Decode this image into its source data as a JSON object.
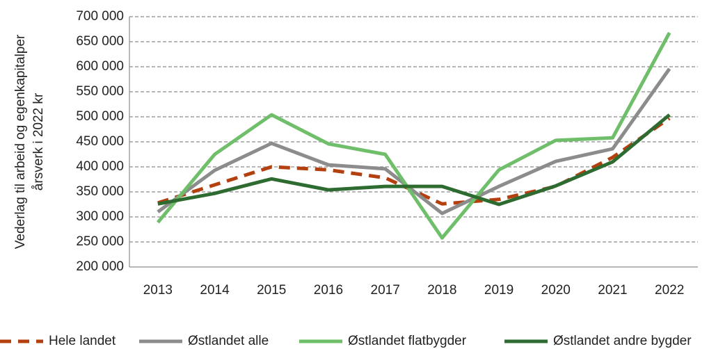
{
  "chart_data": {
    "type": "line",
    "ylabel": [
      "Vederlag til arbeid og egenkapitalper",
      "årsverk i 2022 kr"
    ],
    "categories": [
      "2013",
      "2014",
      "2015",
      "2016",
      "2017",
      "2018",
      "2019",
      "2020",
      "2021",
      "2022"
    ],
    "series": [
      {
        "name": "Hele landet",
        "color": "#b5400f",
        "dash": true,
        "values": [
          328000,
          364000,
          400000,
          394000,
          378000,
          326000,
          335000,
          361000,
          419000,
          497000
        ]
      },
      {
        "name": "Østlandet alle",
        "color": "#8c8c8c",
        "dash": false,
        "values": [
          310000,
          393000,
          447000,
          404000,
          396000,
          307000,
          361000,
          411000,
          436000,
          596000
        ]
      },
      {
        "name": "Østlandet flatbygder",
        "color": "#6fbf6a",
        "dash": false,
        "values": [
          289000,
          425000,
          504000,
          446000,
          425000,
          258000,
          394000,
          453000,
          458000,
          668000
        ]
      },
      {
        "name": "Østlandet andre bygder",
        "color": "#2e6b30",
        "dash": false,
        "values": [
          326000,
          347000,
          376000,
          354000,
          361000,
          361000,
          325000,
          362000,
          410000,
          504000
        ]
      }
    ],
    "ylim": [
      200000,
      700000
    ],
    "yticks": [
      {
        "value": 200000,
        "label": "200 000"
      },
      {
        "value": 250000,
        "label": "250 000"
      },
      {
        "value": 300000,
        "label": "300 000"
      },
      {
        "value": 350000,
        "label": "350 000"
      },
      {
        "value": 400000,
        "label": "400 000"
      },
      {
        "value": 450000,
        "label": "450 000"
      },
      {
        "value": 500000,
        "label": "500 000"
      },
      {
        "value": 550000,
        "label": "550 000"
      },
      {
        "value": 600000,
        "label": "600 000"
      },
      {
        "value": 650000,
        "label": "650 000"
      },
      {
        "value": 700000,
        "label": "700 000"
      }
    ],
    "grid": true,
    "legend": "bottom"
  }
}
